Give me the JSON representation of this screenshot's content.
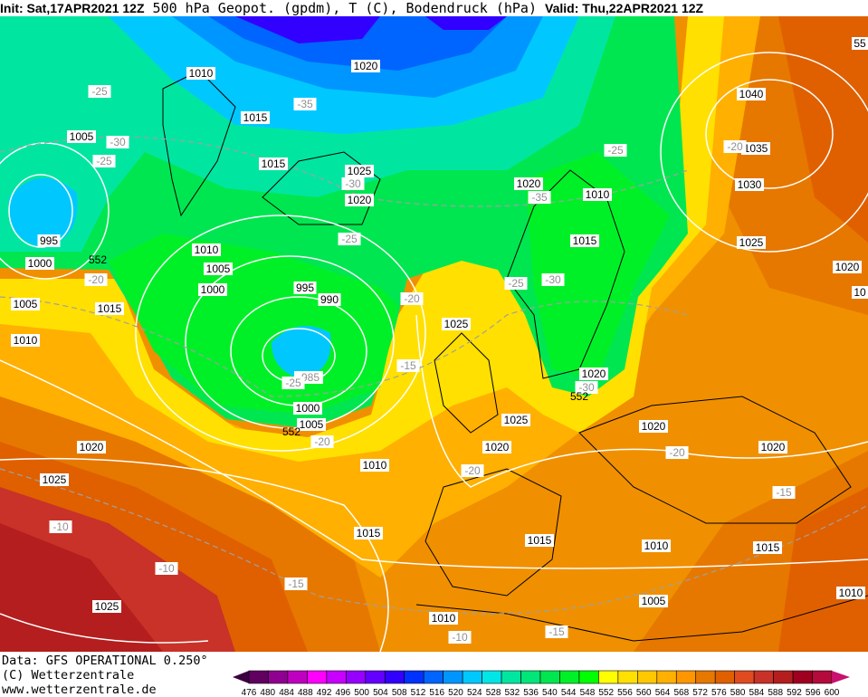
{
  "header": {
    "init": "Init: Sat,17APR2021 12Z",
    "title": "500 hPa Geopot. (gpdm), T (C), Bodendruck (hPa)",
    "valid": "Valid: Thu,22APR2021 12Z"
  },
  "footer": {
    "data": "Data: GFS OPERATIONAL 0.250°",
    "copyright": "(C) Wetterzentrale",
    "url": "www.wetterzentrale.de"
  },
  "colorbar": {
    "labels": [
      "476",
      "480",
      "484",
      "488",
      "492",
      "496",
      "500",
      "504",
      "508",
      "512",
      "516",
      "520",
      "524",
      "528",
      "532",
      "536",
      "540",
      "544",
      "548",
      "552",
      "556",
      "560",
      "564",
      "568",
      "572",
      "576",
      "580",
      "584",
      "588",
      "592",
      "596",
      "600"
    ],
    "colors": [
      "#600060",
      "#900090",
      "#c000c0",
      "#ff00ff",
      "#c800ff",
      "#9600ff",
      "#6400ff",
      "#3200ff",
      "#0032ff",
      "#0064ff",
      "#0096ff",
      "#00c8ff",
      "#00e6e6",
      "#00e6a0",
      "#00e678",
      "#00e650",
      "#00f028",
      "#00ff00",
      "#ffff00",
      "#ffe000",
      "#ffc800",
      "#ffb000",
      "#ff9600",
      "#e67800",
      "#e06000",
      "#e04b20",
      "#c83228",
      "#b41e1e",
      "#a00020",
      "#b40a3c"
    ],
    "under_color": "#3c0040",
    "over_color": "#c8106e"
  },
  "map_labels": [
    "1010",
    "1020",
    "1040",
    "1035",
    "1030",
    "1025",
    "1020",
    "10",
    "-25",
    "1015",
    "-35",
    "1005",
    "-30",
    "-25",
    "1015",
    "1025",
    "-30",
    "1020",
    "1020",
    "-35",
    "1010",
    "-25",
    "-20",
    "995",
    "1000",
    "1010",
    "1005",
    "-25",
    "1015",
    "-20",
    "1005",
    "1015",
    "1000",
    "995",
    "990",
    "-20",
    "-25",
    "-30",
    "1025",
    "1010",
    "-15",
    "-985",
    "-25",
    "1020",
    "-30",
    "1000",
    "1005",
    "-20",
    "1025",
    "1020",
    "-20",
    "1020",
    "1020",
    "1020",
    "1010",
    "-20",
    "1025",
    "-15",
    "-10",
    "1015",
    "1015",
    "1010",
    "1015",
    "-10",
    "-15",
    "1005",
    "1010",
    "1025",
    "1010",
    "-10",
    "-15",
    "552",
    "552",
    "552",
    "55"
  ]
}
